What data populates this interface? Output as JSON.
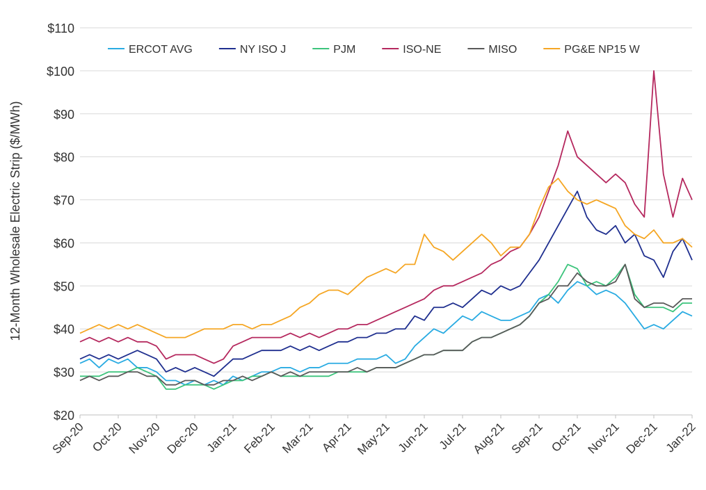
{
  "chart_data": {
    "type": "line",
    "y_label": "12-Month Wholesale Electric Strip ($/MWh)",
    "ylim": [
      20,
      110
    ],
    "yticks": [
      {
        "value": 20,
        "label": "$20"
      },
      {
        "value": 30,
        "label": "$30"
      },
      {
        "value": 40,
        "label": "$40"
      },
      {
        "value": 50,
        "label": "$50"
      },
      {
        "value": 60,
        "label": "$60"
      },
      {
        "value": 70,
        "label": "$70"
      },
      {
        "value": 80,
        "label": "$80"
      },
      {
        "value": 90,
        "label": "$90"
      },
      {
        "value": 100,
        "label": "$100"
      },
      {
        "value": 110,
        "label": "$110"
      }
    ],
    "grid": true,
    "legend": "top",
    "categories": [
      "Sep-20",
      null,
      null,
      null,
      "Oct-20",
      null,
      null,
      null,
      "Nov-20",
      null,
      null,
      null,
      "Dec-20",
      null,
      null,
      null,
      "Jan-21",
      null,
      null,
      null,
      "Feb-21",
      null,
      null,
      null,
      "Mar-21",
      null,
      null,
      null,
      "Apr-21",
      null,
      null,
      null,
      "May-21",
      null,
      null,
      null,
      "Jun-21",
      null,
      null,
      null,
      "Jul-21",
      null,
      null,
      null,
      "Aug-21",
      null,
      null,
      null,
      "Sep-21",
      null,
      null,
      null,
      "Oct-21",
      null,
      null,
      null,
      "Nov-21",
      null,
      null,
      null,
      "Dec-21",
      null,
      null,
      null,
      "Jan-22"
    ],
    "series": [
      {
        "name": "ERCOT AVG",
        "color": "#29abe2",
        "values": [
          32,
          33,
          31,
          33,
          32,
          33,
          31,
          31,
          30,
          28,
          28,
          27,
          28,
          27,
          28,
          27,
          29,
          28,
          29,
          30,
          30,
          31,
          31,
          30,
          31,
          31,
          32,
          32,
          32,
          33,
          33,
          33,
          34,
          32,
          33,
          36,
          38,
          40,
          39,
          41,
          43,
          42,
          44,
          43,
          42,
          42,
          43,
          44,
          47,
          48,
          46,
          49,
          51,
          50,
          48,
          49,
          48,
          46,
          43,
          40,
          41,
          40,
          42,
          44,
          43
        ]
      },
      {
        "name": "NY ISO J",
        "color": "#1f2f8f",
        "values": [
          33,
          34,
          33,
          34,
          33,
          34,
          35,
          34,
          33,
          30,
          31,
          30,
          31,
          30,
          29,
          31,
          33,
          33,
          34,
          35,
          35,
          35,
          36,
          35,
          36,
          35,
          36,
          37,
          37,
          38,
          38,
          39,
          39,
          40,
          40,
          43,
          42,
          45,
          45,
          46,
          45,
          47,
          49,
          48,
          50,
          49,
          50,
          53,
          56,
          60,
          64,
          68,
          72,
          66,
          63,
          62,
          64,
          60,
          62,
          57,
          56,
          52,
          58,
          61,
          56
        ]
      },
      {
        "name": "PJM",
        "color": "#3cc47c",
        "values": [
          29,
          29,
          29,
          30,
          30,
          30,
          31,
          30,
          29,
          26,
          26,
          27,
          27,
          27,
          26,
          27,
          28,
          28,
          29,
          29,
          30,
          29,
          29,
          29,
          29,
          29,
          29,
          30,
          30,
          30,
          30,
          31,
          31,
          31,
          32,
          33,
          34,
          34,
          35,
          35,
          35,
          37,
          38,
          38,
          39,
          40,
          41,
          43,
          46,
          48,
          51,
          55,
          54,
          50,
          51,
          50,
          52,
          55,
          48,
          45,
          45,
          45,
          44,
          46,
          46
        ]
      },
      {
        "name": "ISO-NE",
        "color": "#b5285e",
        "values": [
          37,
          38,
          37,
          38,
          37,
          38,
          37,
          37,
          36,
          33,
          34,
          34,
          34,
          33,
          32,
          33,
          36,
          37,
          38,
          38,
          38,
          38,
          39,
          38,
          39,
          38,
          39,
          40,
          40,
          41,
          41,
          42,
          43,
          44,
          45,
          46,
          47,
          49,
          50,
          50,
          51,
          52,
          53,
          55,
          56,
          58,
          59,
          62,
          66,
          72,
          78,
          86,
          80,
          78,
          76,
          74,
          76,
          74,
          69,
          66,
          100,
          76,
          66,
          75,
          70
        ]
      },
      {
        "name": "MISO",
        "color": "#595959",
        "values": [
          28,
          29,
          28,
          29,
          29,
          30,
          30,
          29,
          29,
          27,
          27,
          28,
          28,
          27,
          27,
          28,
          28,
          29,
          28,
          29,
          30,
          29,
          30,
          29,
          30,
          30,
          30,
          30,
          30,
          31,
          30,
          31,
          31,
          31,
          32,
          33,
          34,
          34,
          35,
          35,
          35,
          37,
          38,
          38,
          39,
          40,
          41,
          43,
          46,
          47,
          50,
          50,
          53,
          51,
          50,
          50,
          51,
          55,
          47,
          45,
          46,
          46,
          45,
          47,
          47
        ]
      },
      {
        "name": "PG&E NP15 W",
        "color": "#f5a623",
        "values": [
          39,
          40,
          41,
          40,
          41,
          40,
          41,
          40,
          39,
          38,
          38,
          38,
          39,
          40,
          40,
          40,
          41,
          41,
          40,
          41,
          41,
          42,
          43,
          45,
          46,
          48,
          49,
          49,
          48,
          50,
          52,
          53,
          54,
          53,
          55,
          55,
          62,
          59,
          58,
          56,
          58,
          60,
          62,
          60,
          57,
          59,
          59,
          62,
          68,
          73,
          75,
          72,
          70,
          69,
          70,
          69,
          68,
          64,
          62,
          61,
          63,
          60,
          60,
          61,
          59
        ]
      }
    ]
  }
}
